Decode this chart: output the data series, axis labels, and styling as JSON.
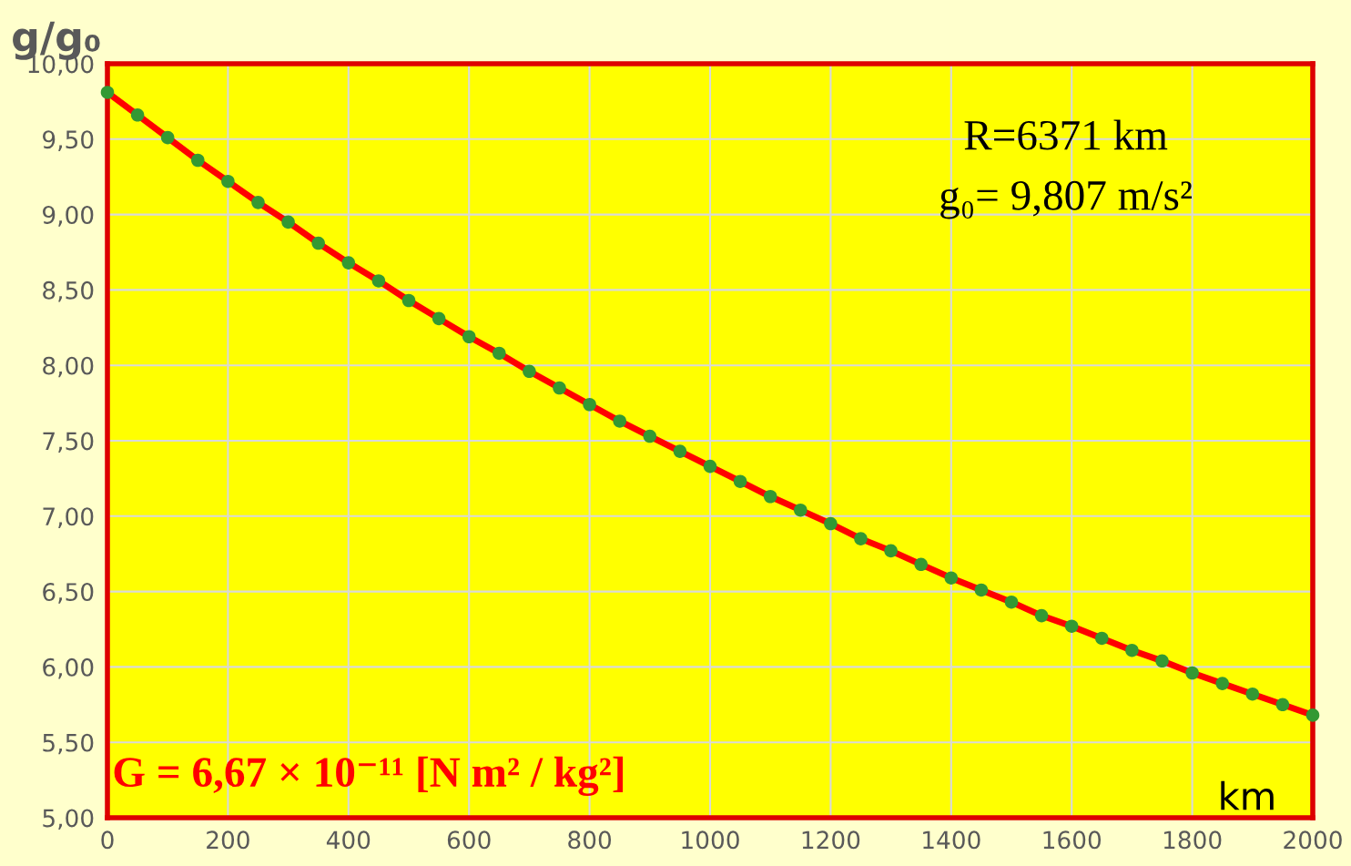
{
  "chart_data": {
    "type": "line",
    "ylabel": "g/g₀",
    "xlabel": "km",
    "annotations": [
      "R=6371 km",
      "g₀= 9,807 m/s²",
      "G = 6,67 × 10⁻¹¹ [N m² / kg²]"
    ],
    "x": [
      0,
      50,
      100,
      150,
      200,
      250,
      300,
      350,
      400,
      450,
      500,
      550,
      600,
      650,
      700,
      750,
      800,
      850,
      900,
      950,
      1000,
      1050,
      1100,
      1150,
      1200,
      1250,
      1300,
      1350,
      1400,
      1450,
      1500,
      1550,
      1600,
      1650,
      1700,
      1750,
      1800,
      1850,
      1900,
      1950,
      2000
    ],
    "series": [
      {
        "color": "#ff0000",
        "values": [
          9.81,
          9.66,
          9.51,
          9.36,
          9.22,
          9.08,
          8.95,
          8.81,
          8.68,
          8.56,
          8.43,
          8.31,
          8.19,
          8.08,
          7.96,
          7.85,
          7.74,
          7.63,
          7.53,
          7.43,
          7.33,
          7.23,
          7.13,
          7.04,
          6.95,
          6.85,
          6.77,
          6.68,
          6.59,
          6.51,
          6.43,
          6.34,
          6.27,
          6.19,
          6.11,
          6.04,
          5.96,
          5.89,
          5.82,
          5.75,
          5.68
        ]
      },
      {
        "type": "scatter",
        "color": "#339933",
        "marker": "circle",
        "values": [
          9.81,
          9.66,
          9.51,
          9.36,
          9.22,
          9.08,
          8.95,
          8.81,
          8.68,
          8.56,
          8.43,
          8.31,
          8.19,
          8.08,
          7.96,
          7.85,
          7.74,
          7.63,
          7.53,
          7.43,
          7.33,
          7.23,
          7.13,
          7.04,
          6.95,
          6.85,
          6.77,
          6.68,
          6.59,
          6.51,
          6.43,
          6.34,
          6.27,
          6.19,
          6.11,
          6.04,
          5.96,
          5.89,
          5.82,
          5.75,
          5.68
        ]
      }
    ],
    "line_style": "solid",
    "grid": true,
    "xlim": [
      0,
      2000
    ],
    "xticks": [
      0,
      200,
      400,
      600,
      800,
      1000,
      1200,
      1400,
      1600,
      1800,
      2000
    ],
    "ylim": [
      5,
      10
    ],
    "yticks": [
      {
        "value": 5,
        "label": "5,00"
      },
      {
        "value": 5.5,
        "label": "5,50"
      },
      {
        "value": 6,
        "label": "6,00"
      },
      {
        "value": 6.5,
        "label": "6,50"
      },
      {
        "value": 7,
        "label": "7,00"
      },
      {
        "value": 7.5,
        "label": "7,50"
      },
      {
        "value": 8,
        "label": "8,00"
      },
      {
        "value": 8.5,
        "label": "8,50"
      },
      {
        "value": 9,
        "label": "9,00"
      },
      {
        "value": 9.5,
        "label": "9,50"
      },
      {
        "value": 10,
        "label": "10,00"
      }
    ]
  }
}
